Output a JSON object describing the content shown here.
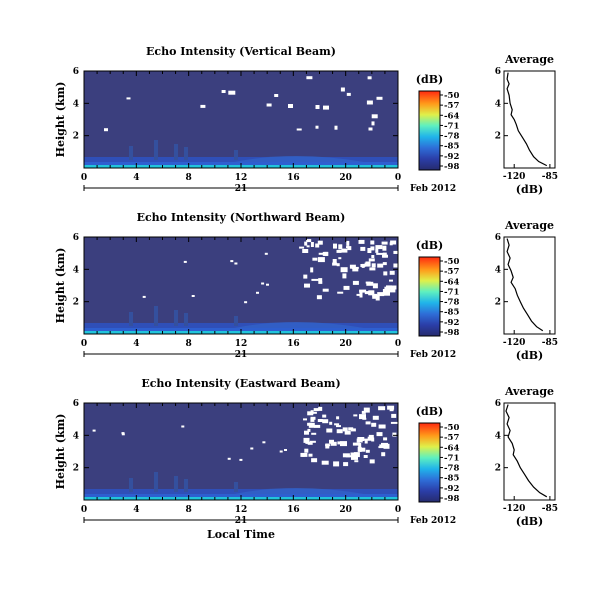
{
  "chart_data": [
    {
      "type": "heatmap",
      "title": "Echo Intensity (Vertical Beam)",
      "ylabel": "Height (km)",
      "x_ticks": [
        "0",
        "4",
        "8",
        "12",
        "16",
        "20",
        "0"
      ],
      "y_ticks": [
        "2",
        "4",
        "6"
      ],
      "date_label": "21",
      "month_label": "Feb 2012",
      "background_level_db": -98,
      "ylim": [
        0,
        6
      ]
    },
    {
      "type": "heatmap",
      "title": "Echo Intensity (Northward Beam)",
      "ylabel": "Height (km)",
      "x_ticks": [
        "0",
        "4",
        "8",
        "12",
        "16",
        "20",
        "0"
      ],
      "y_ticks": [
        "2",
        "4",
        "6"
      ],
      "date_label": "21",
      "month_label": "Feb 2012",
      "background_level_db": -98,
      "ylim": [
        0,
        6
      ]
    },
    {
      "type": "heatmap",
      "title": "Echo Intensity (Eastward Beam)",
      "ylabel": "Height (km)",
      "xlabel": "Local Time",
      "x_ticks": [
        "0",
        "4",
        "8",
        "12",
        "16",
        "20",
        "0"
      ],
      "y_ticks": [
        "2",
        "4",
        "6"
      ],
      "date_label": "21",
      "month_label": "Feb 2012",
      "background_level_db": -98,
      "ylim": [
        0,
        6
      ]
    },
    {
      "type": "line",
      "title": "Average",
      "xlabel": "(dB)",
      "x_ticks": [
        "-120",
        "-85"
      ],
      "y_ticks": [
        "2",
        "4",
        "6"
      ],
      "xlim": [
        -130,
        -80
      ],
      "ylim": [
        0,
        6
      ],
      "points": [
        [
          -126,
          5.9
        ],
        [
          -127,
          5.5
        ],
        [
          -125,
          5.2
        ],
        [
          -127,
          4.9
        ],
        [
          -125,
          4.5
        ],
        [
          -124,
          4.0
        ],
        [
          -122,
          3.6
        ],
        [
          -123,
          3.3
        ],
        [
          -120,
          3.0
        ],
        [
          -118,
          2.7
        ],
        [
          -116,
          2.3
        ],
        [
          -112,
          1.9
        ],
        [
          -108,
          1.5
        ],
        [
          -105,
          1.1
        ],
        [
          -101,
          0.7
        ],
        [
          -96,
          0.4
        ],
        [
          -88,
          0.15
        ]
      ]
    },
    {
      "type": "line",
      "title": "Average",
      "xlabel": "(dB)",
      "x_ticks": [
        "-120",
        "-85"
      ],
      "y_ticks": [
        "2",
        "4",
        "6"
      ],
      "xlim": [
        -130,
        -80
      ],
      "ylim": [
        0,
        6
      ],
      "points": [
        [
          -127,
          5.9
        ],
        [
          -125,
          5.5
        ],
        [
          -127,
          5.1
        ],
        [
          -124,
          4.7
        ],
        [
          -126,
          4.3
        ],
        [
          -123,
          3.9
        ],
        [
          -121,
          3.5
        ],
        [
          -123,
          3.2
        ],
        [
          -119,
          2.8
        ],
        [
          -117,
          2.4
        ],
        [
          -114,
          2.0
        ],
        [
          -111,
          1.6
        ],
        [
          -107,
          1.2
        ],
        [
          -103,
          0.8
        ],
        [
          -98,
          0.45
        ],
        [
          -92,
          0.2
        ]
      ]
    },
    {
      "type": "line",
      "title": "Average",
      "xlabel": "(dB)",
      "x_ticks": [
        "-120",
        "-85"
      ],
      "y_ticks": [
        "2",
        "4",
        "6"
      ],
      "xlim": [
        -130,
        -80
      ],
      "ylim": [
        0,
        6
      ],
      "points": [
        [
          -126,
          5.9
        ],
        [
          -128,
          5.5
        ],
        [
          -125,
          5.1
        ],
        [
          -127,
          4.7
        ],
        [
          -124,
          4.3
        ],
        [
          -126,
          3.9
        ],
        [
          -122,
          3.5
        ],
        [
          -120,
          3.1
        ],
        [
          -121,
          2.8
        ],
        [
          -117,
          2.4
        ],
        [
          -114,
          2.0
        ],
        [
          -110,
          1.6
        ],
        [
          -106,
          1.2
        ],
        [
          -101,
          0.8
        ],
        [
          -95,
          0.45
        ],
        [
          -88,
          0.2
        ]
      ]
    }
  ],
  "colorbar": {
    "unit": "(dB)",
    "labels": [
      "-50",
      "-57",
      "-64",
      "-71",
      "-78",
      "-85",
      "-92",
      "-98"
    ],
    "colors": [
      "#ff3010",
      "#ff9a1a",
      "#f5f032",
      "#7cf27c",
      "#1fd4ea",
      "#1f8ff0",
      "#2a4dd6",
      "#2a2f82"
    ]
  },
  "colors": {
    "background": "#3b3f7e",
    "near_surface": "#2e5fd0",
    "surface_echo": "#21c4dc",
    "missing": "#ffffff"
  }
}
